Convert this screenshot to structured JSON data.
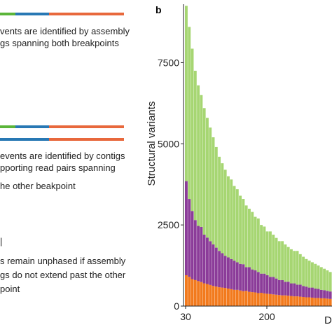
{
  "panel_a": {
    "text1": [
      "vents are identified by assembly",
      "gs spanning both breakpoints"
    ],
    "text2": [
      "events are identified by contigs",
      "pporting read pairs spanning",
      "he other beakpoint"
    ],
    "text3_marker": "|",
    "text3": [
      "s remain unphased if assembly",
      "gs do not extend past the other",
      "point"
    ]
  },
  "colors": {
    "green": "#5bb539",
    "blue": "#2878b4",
    "orange": "#e8683c",
    "lightgreen": "#a6d672",
    "purple": "#8b3c99",
    "darkorange": "#f27a1d"
  },
  "panel_b_label": "b",
  "chart_data": {
    "type": "bar",
    "stacked": true,
    "xlabel": "D",
    "ylabel": "Structural variants",
    "x_tick_labels": [
      "30",
      "200"
    ],
    "y_ticks": [
      0,
      2500,
      5000,
      7500
    ],
    "ylim": [
      0,
      9300
    ],
    "bin_count": 49,
    "series": [
      {
        "name": "",
        "color": "#f27a1d",
        "values": [
          950,
          900,
          830,
          800,
          770,
          740,
          700,
          680,
          650,
          620,
          600,
          580,
          570,
          560,
          540,
          520,
          500,
          500,
          480,
          460,
          470,
          440,
          430,
          420,
          400,
          410,
          390,
          380,
          370,
          360,
          350,
          340,
          330,
          330,
          320,
          310,
          300,
          300,
          290,
          280,
          270,
          270,
          260,
          250,
          250,
          240,
          240,
          230,
          220
        ]
      },
      {
        "name": "",
        "color": "#8b3c99",
        "values": [
          2900,
          2400,
          2100,
          1850,
          1700,
          1700,
          1500,
          1430,
          1350,
          1280,
          1200,
          1120,
          1060,
          990,
          960,
          930,
          900,
          850,
          820,
          830,
          730,
          760,
          700,
          680,
          650,
          590,
          610,
          570,
          530,
          540,
          500,
          460,
          470,
          420,
          430,
          390,
          400,
          360,
          370,
          340,
          330,
          300,
          310,
          290,
          280,
          260,
          250,
          240,
          230
        ]
      },
      {
        "name": "",
        "color": "#a6d672",
        "values": [
          5400,
          5300,
          5000,
          4600,
          4330,
          4060,
          3900,
          3690,
          3500,
          3300,
          3100,
          2900,
          2770,
          2650,
          2500,
          2450,
          2300,
          2250,
          2100,
          2010,
          1900,
          1800,
          1770,
          1650,
          1650,
          1500,
          1450,
          1350,
          1400,
          1300,
          1250,
          1200,
          1200,
          1150,
          1070,
          1050,
          1000,
          1040,
          940,
          900,
          850,
          830,
          780,
          760,
          720,
          700,
          660,
          630,
          600
        ]
      }
    ]
  }
}
